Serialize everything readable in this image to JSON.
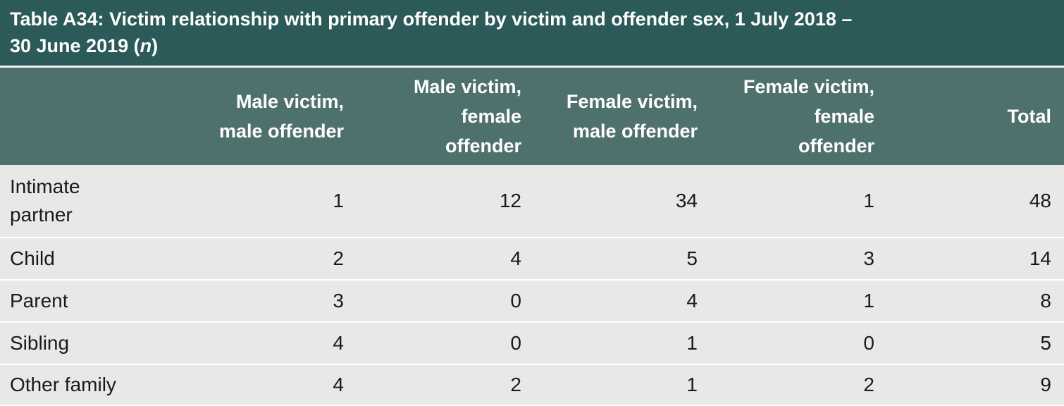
{
  "table": {
    "title": "Table A34: Victim relationship with primary offender by victim and offender sex, 1 July 2018 –",
    "title_line2": "30 June 2019 (",
    "title_n": "n",
    "title_close": ")",
    "headers": [
      "Male victim,\nmale offender",
      "Male victim,\nfemale\noffender",
      "Female victim,\nmale offender",
      "Female victim,\nfemale\noffender",
      "Total"
    ],
    "rows": [
      {
        "label": "Intimate\npartner",
        "values": [
          "1",
          "12",
          "34",
          "1",
          "48"
        ]
      },
      {
        "label": "Child",
        "values": [
          "2",
          "4",
          "5",
          "3",
          "14"
        ]
      },
      {
        "label": "Parent",
        "values": [
          "3",
          "0",
          "4",
          "1",
          "8"
        ]
      },
      {
        "label": "Sibling",
        "values": [
          "4",
          "0",
          "1",
          "0",
          "5"
        ]
      },
      {
        "label": "Other family",
        "values": [
          "4",
          "2",
          "1",
          "2",
          "9"
        ]
      }
    ]
  },
  "colors": {
    "title_bg": "#2b5a58",
    "header_bg": "#4f716d",
    "body_bg": "#e8e8e6"
  }
}
